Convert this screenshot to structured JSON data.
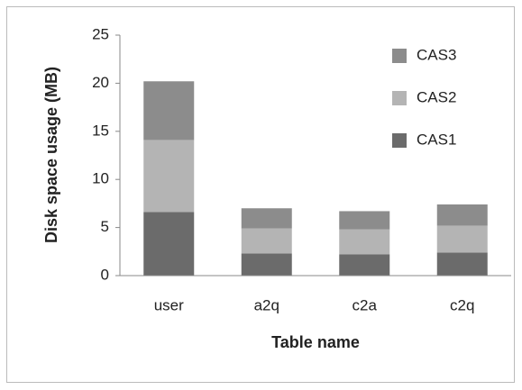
{
  "chart_data": {
    "type": "stacked_bar",
    "categories": [
      "user",
      "a2q",
      "c2a",
      "c2q"
    ],
    "series": [
      {
        "name": "CAS1",
        "color": "#6b6b6b",
        "values": [
          6.6,
          2.3,
          2.2,
          2.4
        ]
      },
      {
        "name": "CAS2",
        "color": "#b4b4b4",
        "values": [
          7.5,
          2.6,
          2.6,
          2.8
        ]
      },
      {
        "name": "CAS3",
        "color": "#8c8c8c",
        "values": [
          6.1,
          2.1,
          1.9,
          2.2
        ]
      }
    ],
    "ylim": [
      0,
      25
    ],
    "yticks": [
      0,
      5,
      10,
      15,
      20,
      25
    ],
    "y_label": "Disk space usage (MB)",
    "x_label": "Table name",
    "legend": "upper right",
    "grid": false
  }
}
